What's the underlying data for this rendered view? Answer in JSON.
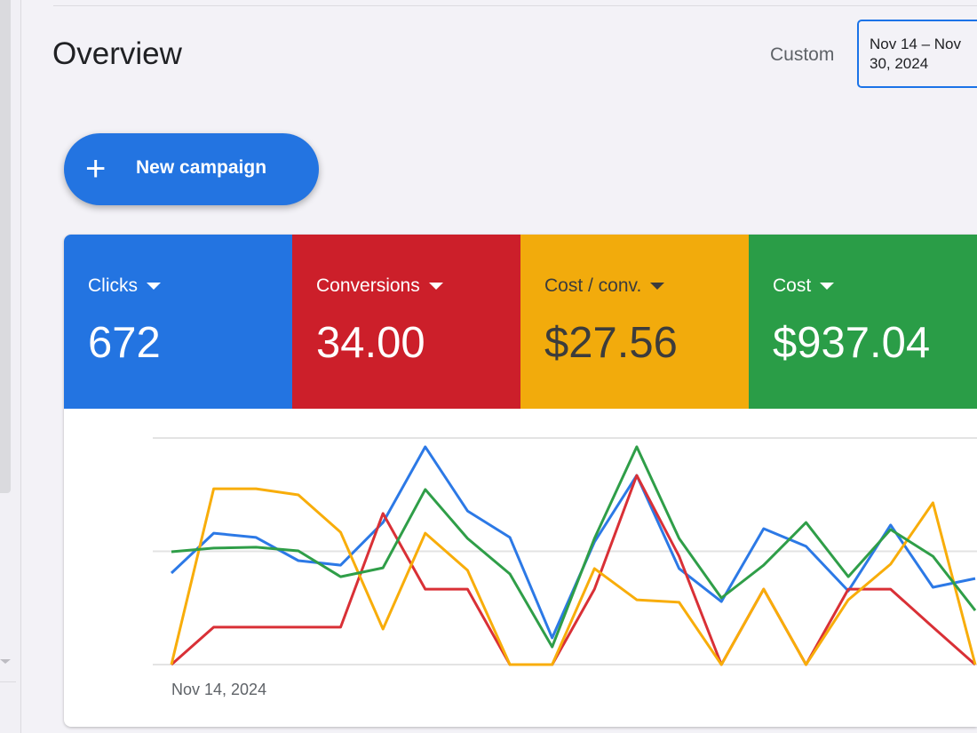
{
  "header": {
    "title": "Overview",
    "date_range_label": "Custom",
    "date_range_value": "Nov 14 – Nov 30, 2024"
  },
  "new_campaign_button": {
    "label": "New campaign",
    "icon": "plus-icon"
  },
  "metrics": [
    {
      "label": "Clicks",
      "value": "672",
      "color": "#2374e1"
    },
    {
      "label": "Conversions",
      "value": "34.00",
      "color": "#cc1f2a"
    },
    {
      "label": "Cost / conv.",
      "value": "$27.56",
      "color": "#f2ab0c"
    },
    {
      "label": "Cost",
      "value": "$937.04",
      "color": "#2a9d47"
    }
  ],
  "chart_data": {
    "type": "line",
    "x_start_label": "Nov 14, 2024",
    "grid": true,
    "ylim": [
      0,
      100
    ],
    "series": [
      {
        "metric": "Clicks",
        "color": "#2c79e6",
        "values": [
          40.4,
          58.0,
          56.1,
          45.9,
          43.9,
          62.7,
          96.1,
          67.8,
          56.1,
          11.8,
          54.1,
          83.5,
          42.4,
          27.8,
          60.0,
          52.2,
          32.5,
          61.6,
          34.1,
          38.0
        ]
      },
      {
        "metric": "Conversions",
        "color": "#d93036",
        "values": [
          0,
          16.5,
          16.5,
          16.5,
          16.5,
          66.7,
          33.3,
          33.3,
          0,
          0,
          33.3,
          83.5,
          47.8,
          0,
          33.3,
          0,
          33.3,
          33.3,
          16.5,
          0
        ]
      },
      {
        "metric": "Cost / conv.",
        "color": "#f8ad0a",
        "values": [
          0,
          77.6,
          77.6,
          74.9,
          58.4,
          15.7,
          58.0,
          41.6,
          0,
          0,
          42.4,
          28.6,
          27.5,
          0,
          33.3,
          0,
          28.6,
          44.3,
          71.4,
          0
        ]
      },
      {
        "metric": "Cost",
        "color": "#2f9e48",
        "values": [
          49.8,
          51.4,
          51.8,
          50.2,
          38.8,
          42.7,
          77.3,
          55.7,
          40.0,
          7.8,
          55.7,
          96.1,
          55.7,
          29.4,
          43.9,
          62.7,
          38.8,
          59.6,
          47.8,
          23.9
        ]
      }
    ]
  }
}
